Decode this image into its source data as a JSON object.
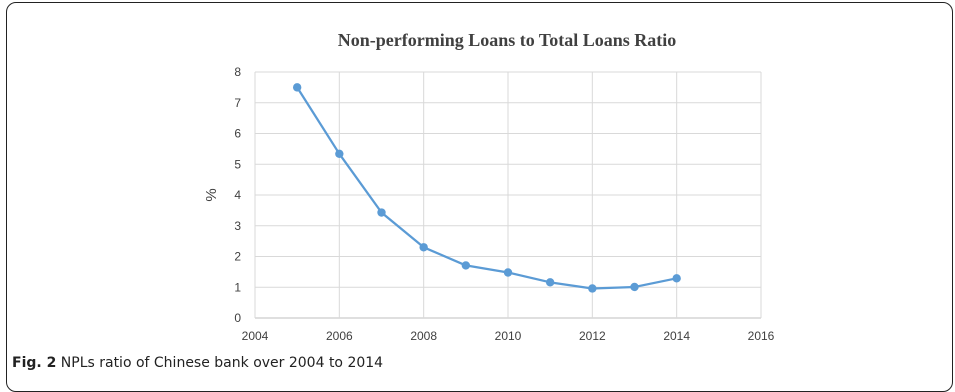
{
  "chart_data": {
    "type": "line",
    "title": "Non-performing Loans to Total Loans Ratio",
    "xlabel": "",
    "ylabel": "%",
    "xlim": [
      2004,
      2016
    ],
    "ylim": [
      0,
      8
    ],
    "x_ticks": [
      2004,
      2006,
      2008,
      2010,
      2012,
      2014,
      2016
    ],
    "y_ticks": [
      0,
      1,
      2,
      3,
      4,
      5,
      6,
      7,
      8
    ],
    "grid": true,
    "legend": "none",
    "series": [
      {
        "color": "#5b9bd5",
        "x": [
          2005,
          2006,
          2007,
          2008,
          2009,
          2010,
          2011,
          2012,
          2013,
          2014
        ],
        "y": [
          7.5,
          5.34,
          3.43,
          2.3,
          1.71,
          1.48,
          1.16,
          0.96,
          1.01,
          1.29
        ]
      }
    ]
  },
  "caption": {
    "label": "Fig. 2",
    "text": " NPLs ratio of Chinese bank over 2004 to 2014"
  }
}
